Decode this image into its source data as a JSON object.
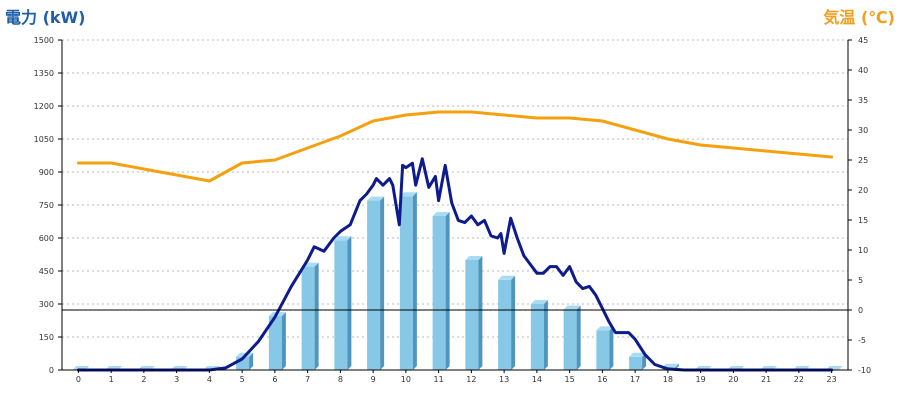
{
  "chart_data": {
    "type": "bar+line",
    "left_axis_title": "電力 (kW)",
    "right_axis_title": "気温 (℃)",
    "colors": {
      "left_title": "#1f5fa8",
      "right_title": "#f0a020",
      "bar_front": "#87c8e6",
      "bar_side": "#4f95bd",
      "bar_top": "#a9dcf2",
      "power_line": "#0d1b8c",
      "temp_line": "#f5a00e",
      "grid": "#b8b8b8",
      "axis": "#000000"
    },
    "categories": [
      "0",
      "1",
      "2",
      "3",
      "4",
      "5",
      "6",
      "7",
      "8",
      "9",
      "10",
      "11",
      "12",
      "13",
      "14",
      "15",
      "16",
      "17",
      "18",
      "19",
      "20",
      "21",
      "22",
      "23"
    ],
    "y_left": {
      "min": 0,
      "max": 1500,
      "ticks": [
        "0",
        "150",
        "300",
        "450",
        "600",
        "750",
        "900",
        "1050",
        "1200",
        "1350",
        "1500"
      ]
    },
    "y_right": {
      "min": -10,
      "max": 45,
      "ticks": [
        "-10",
        "-5",
        "0",
        "5",
        "10",
        "15",
        "20",
        "25",
        "30",
        "35",
        "40",
        "45"
      ]
    },
    "grid": true,
    "series": [
      {
        "kind": "bar",
        "axis": "left",
        "values": [
          0,
          0,
          0,
          0,
          0,
          60,
          245,
          470,
          590,
          770,
          790,
          700,
          500,
          410,
          300,
          275,
          180,
          60,
          10,
          0,
          0,
          0,
          0,
          0
        ]
      },
      {
        "kind": "line",
        "axis": "left",
        "x": [
          0,
          1,
          2,
          3,
          4,
          4.5,
          5,
          5.5,
          6,
          6.5,
          7,
          7.2,
          7.5,
          7.8,
          8,
          8.3,
          8.6,
          8.8,
          9,
          9.1,
          9.3,
          9.5,
          9.6,
          9.8,
          9.9,
          10,
          10.2,
          10.3,
          10.5,
          10.7,
          10.9,
          11,
          11.2,
          11.4,
          11.6,
          11.8,
          12,
          12.2,
          12.4,
          12.6,
          12.8,
          12.9,
          13,
          13.2,
          13.4,
          13.6,
          13.8,
          14,
          14.2,
          14.4,
          14.6,
          14.8,
          15,
          15.2,
          15.4,
          15.6,
          15.8,
          16,
          16.2,
          16.4,
          16.6,
          16.8,
          17,
          17.3,
          17.6,
          18,
          18.5,
          19,
          20,
          21,
          22,
          23
        ],
        "values": [
          0,
          0,
          0,
          0,
          0,
          10,
          50,
          130,
          240,
          380,
          500,
          560,
          540,
          600,
          630,
          660,
          770,
          800,
          840,
          870,
          840,
          870,
          840,
          660,
          930,
          920,
          940,
          840,
          960,
          830,
          880,
          770,
          930,
          760,
          680,
          670,
          700,
          660,
          680,
          610,
          600,
          620,
          530,
          690,
          600,
          520,
          480,
          440,
          440,
          470,
          470,
          430,
          470,
          400,
          370,
          380,
          340,
          280,
          220,
          170,
          170,
          170,
          140,
          70,
          25,
          5,
          0,
          0,
          0,
          0,
          0,
          0
        ]
      },
      {
        "kind": "line",
        "axis": "right",
        "x": [
          0,
          1,
          2,
          3,
          4,
          5,
          6,
          7,
          8,
          9,
          10,
          11,
          12,
          13,
          14,
          15,
          16,
          17,
          18,
          19,
          20,
          21,
          22,
          23
        ],
        "values": [
          24.5,
          24.5,
          23.5,
          22.5,
          21.5,
          24.5,
          25,
          27,
          29,
          31.5,
          32.5,
          33,
          33,
          32.5,
          32,
          32,
          31.5,
          30,
          28.5,
          27.5,
          27,
          26.5,
          26,
          25.5
        ]
      }
    ]
  }
}
